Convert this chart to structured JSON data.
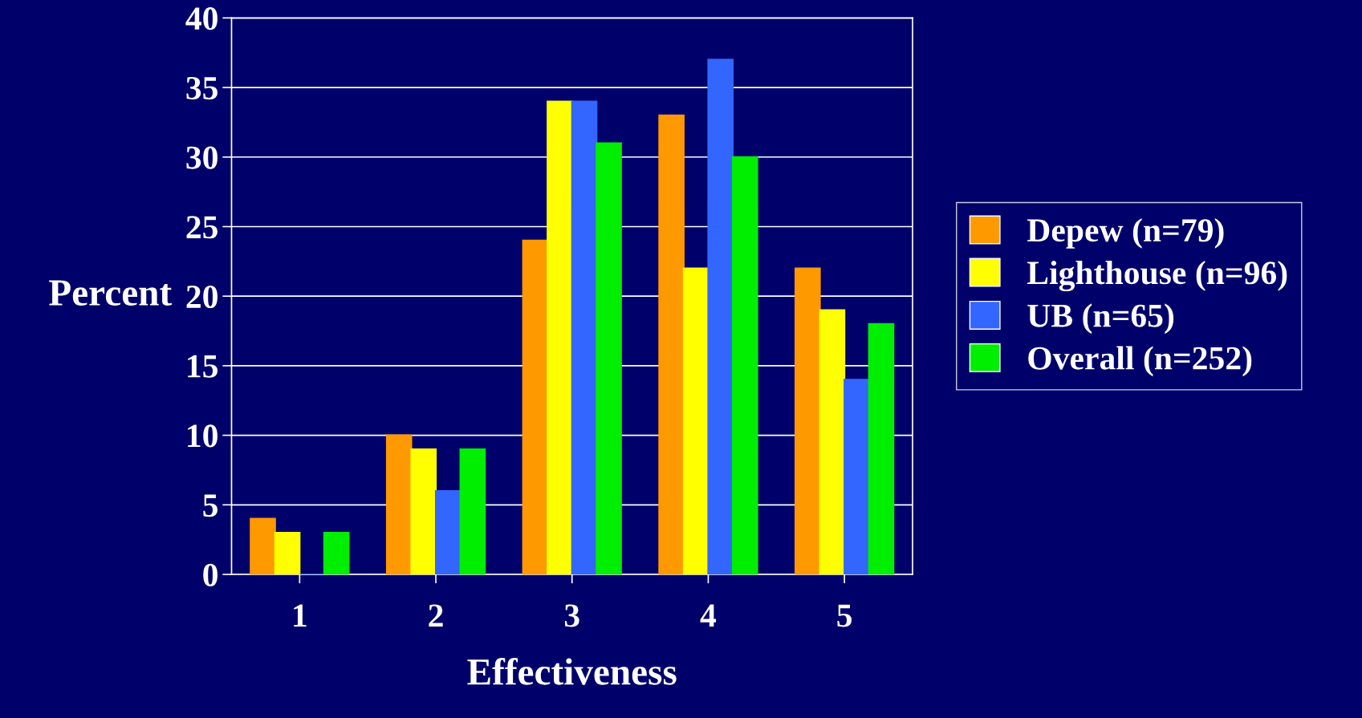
{
  "chart_data": {
    "type": "bar",
    "xlabel": "Effectiveness",
    "ylabel": "Percent",
    "categories": [
      "1",
      "2",
      "3",
      "4",
      "5"
    ],
    "series": [
      {
        "name": "Depew (n=79)",
        "color": "#ff9900",
        "values": [
          4,
          10,
          24,
          33,
          22
        ]
      },
      {
        "name": "Lighthouse (n=96)",
        "color": "#ffff00",
        "values": [
          3,
          9,
          34,
          22,
          19
        ]
      },
      {
        "name": "UB (n=65)",
        "color": "#3366ff",
        "values": [
          0,
          6,
          34,
          37,
          14
        ]
      },
      {
        "name": "Overall (n=252)",
        "color": "#00ee00",
        "values": [
          3,
          9,
          31,
          30,
          18
        ]
      }
    ],
    "ylim": [
      0,
      40
    ],
    "yticks": [
      0,
      5,
      10,
      15,
      20,
      25,
      30,
      35,
      40
    ],
    "grid": "y",
    "legend": "right"
  }
}
